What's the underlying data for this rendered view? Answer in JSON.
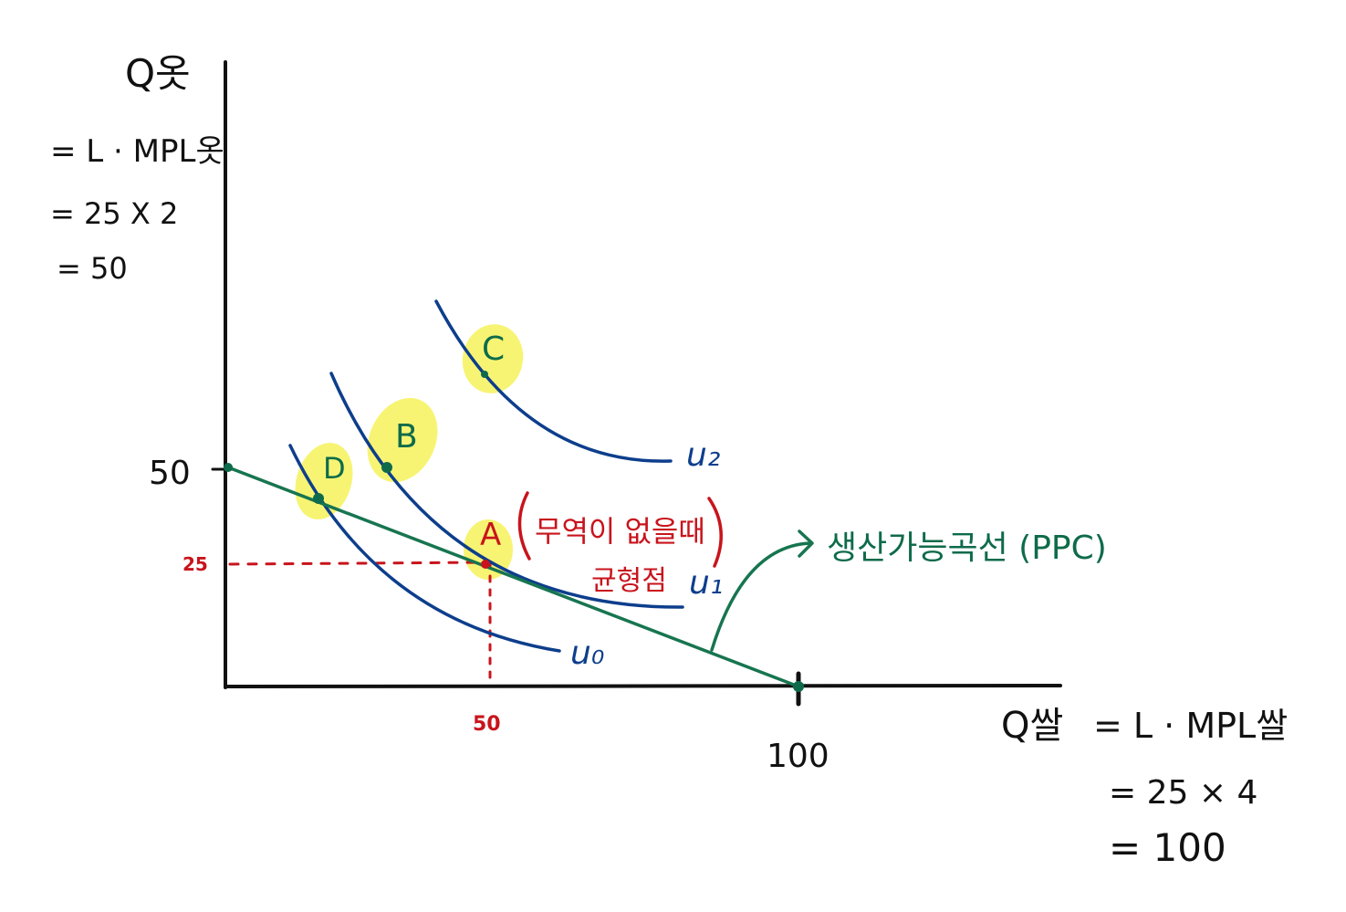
{
  "colors": {
    "ink": "#111111",
    "curve_blue": "#0d3e8c",
    "ppc_green": "#177550",
    "point_green": "#0f6a4c",
    "annotation_red": "#c8141c",
    "highlight_yellow": "#f6f25a"
  },
  "y_axis": {
    "title": "Q옷",
    "derivation": [
      "= L · MPL옷",
      "= 25 X 2",
      "= 50"
    ],
    "tick_50": "50",
    "tick_25": "25"
  },
  "x_axis": {
    "title": "Q쌀",
    "derivation": [
      "= L · MPL쌀",
      "= 25 × 4",
      "= 100"
    ],
    "tick_50": "50",
    "tick_100": "100"
  },
  "curves": {
    "u0": "u₀",
    "u1": "u₁",
    "u2": "u₂"
  },
  "points": {
    "A": "A",
    "B": "B",
    "C": "C",
    "D": "D"
  },
  "annotations": {
    "no_trade_line1": "무역이 없을때",
    "no_trade_line2": "균형점",
    "ppc_label": "생산가능곡선 (PPC)"
  }
}
